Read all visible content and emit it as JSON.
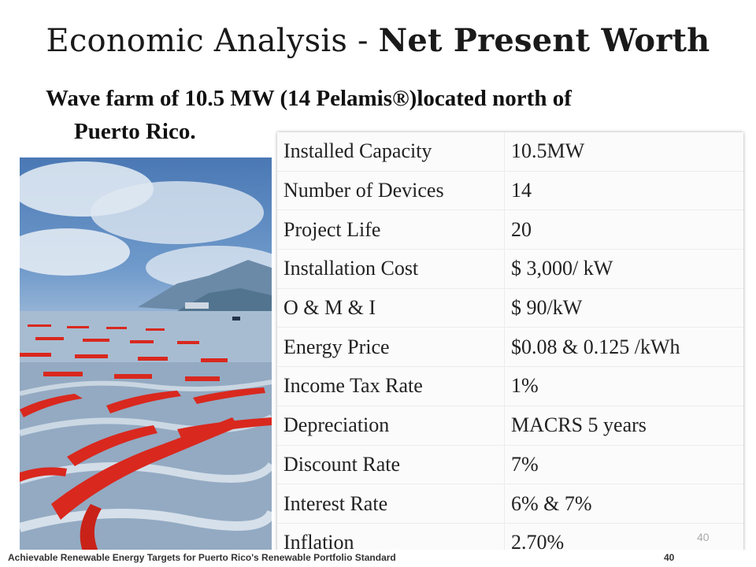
{
  "title": {
    "prefix": "Economic Analysis - ",
    "bold": "Net Present Worth"
  },
  "subtitle": {
    "line1": "Wave farm of 10.5 MW (14 Pelamis®)located north of",
    "line2": "Puerto Rico."
  },
  "parameters": [
    {
      "label": "Installed Capacity",
      "value": "10.5MW"
    },
    {
      "label": "Number of  Devices",
      "value": "14"
    },
    {
      "label": "Project Life",
      "value": "20"
    },
    {
      "label": "Installation Cost",
      "value": " $ 3,000/ kW"
    },
    {
      "label": "O & M & I",
      "value": " $ 90/kW"
    },
    {
      "label": "Energy Price",
      "value": "$0.08 & 0.125 /kWh"
    },
    {
      "label": "Income Tax Rate",
      "value": "1%"
    },
    {
      "label": "Depreciation",
      "value": "MACRS 5 years"
    },
    {
      "label": "Discount Rate",
      "value": "7%"
    },
    {
      "label": "Interest Rate",
      "value": "6% & 7%"
    },
    {
      "label": "Inflation",
      "value": "2.70%"
    }
  ],
  "page_number": "40",
  "footer": {
    "text": "Achievable Renewable Energy Targets for Puerto Rico's Renewable Portfolio Standard",
    "page": "40"
  },
  "colors": {
    "wave_device": "#d9281e",
    "sea": "#9db9d8"
  }
}
